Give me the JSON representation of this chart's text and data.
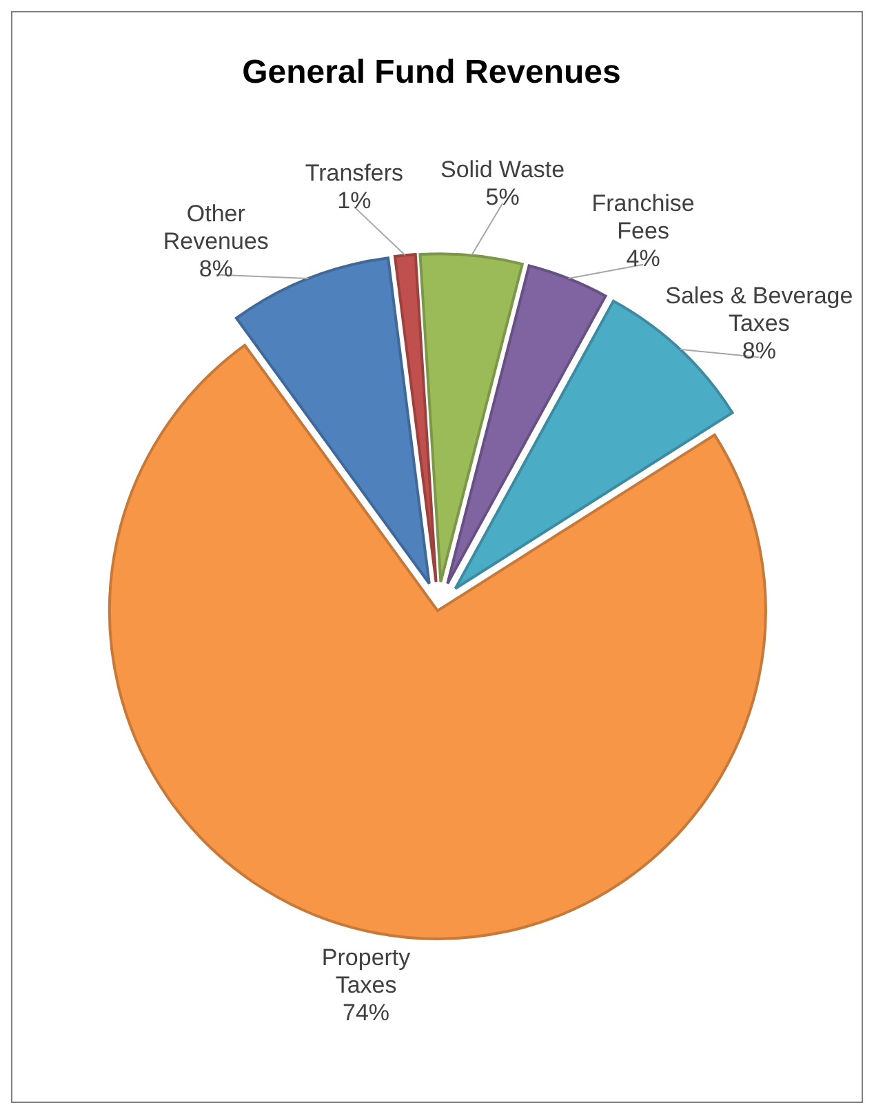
{
  "chart_data": {
    "type": "pie",
    "title": "General Fund Revenues",
    "categories": [
      "Other Revenues",
      "Transfers",
      "Solid Waste",
      "Franchise Fees",
      "Sales & Beverage Taxes",
      "Property Taxes"
    ],
    "values": [
      8,
      1,
      5,
      4,
      8,
      74
    ],
    "colors": [
      "#4f81bd",
      "#c0504d",
      "#9bbb59",
      "#8064a2",
      "#4bacc6",
      "#f79646"
    ],
    "value_labels": [
      "8%",
      "1%",
      "5%",
      "4%",
      "8%",
      "74%"
    ]
  }
}
